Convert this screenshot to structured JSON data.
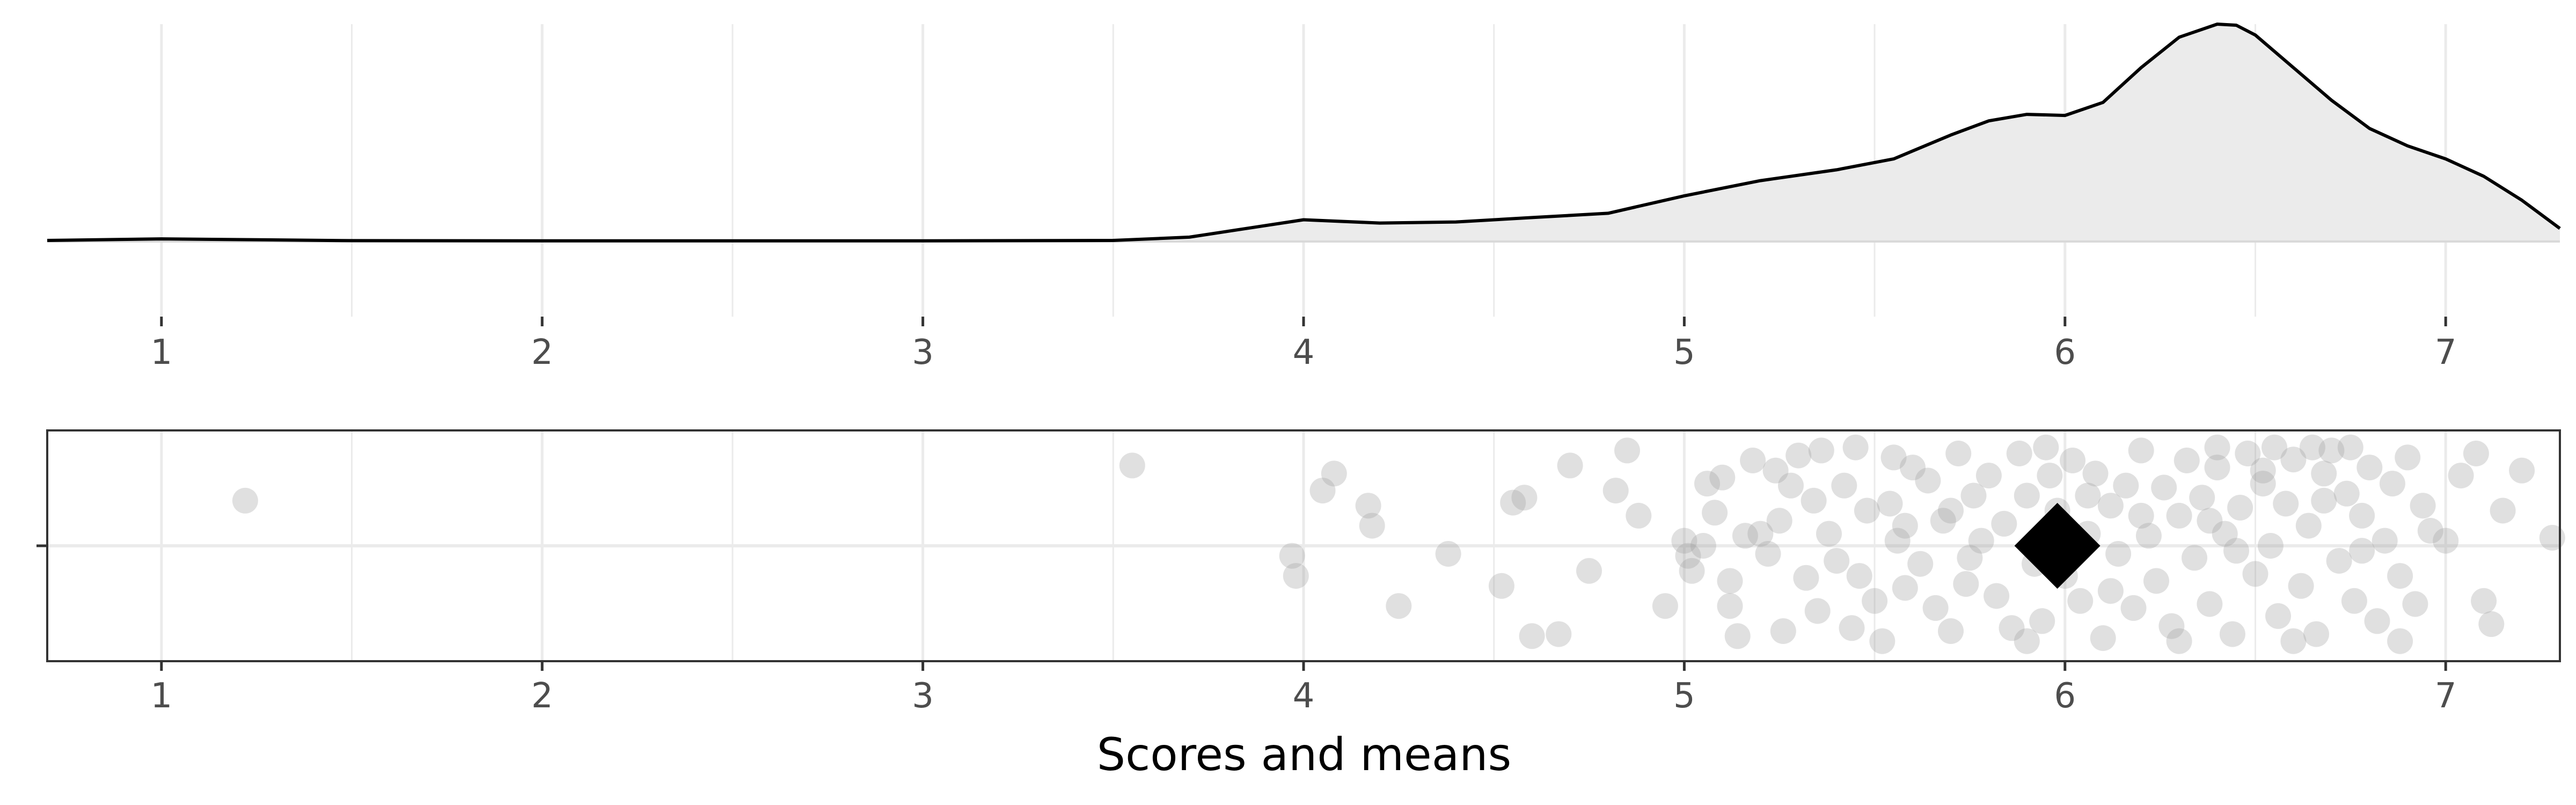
{
  "chart_data": [
    {
      "type": "area",
      "title": "",
      "xlabel": "",
      "ylabel": "",
      "xlim": [
        0.7,
        7.3
      ],
      "ylim": [
        0,
        1
      ],
      "grid": true,
      "legend": "none",
      "x_ticks": [
        1,
        2,
        3,
        4,
        5,
        6,
        7
      ],
      "x_tick_labels": [
        "1",
        "2",
        "3",
        "4",
        "5",
        "6",
        "7"
      ],
      "series": [
        {
          "x": [
            0.7,
            1.0,
            1.5,
            2.0,
            3.0,
            3.5,
            3.7,
            3.85,
            4.0,
            4.2,
            4.4,
            4.6,
            4.8,
            5.0,
            5.2,
            5.4,
            5.55,
            5.7,
            5.8,
            5.9,
            6.0,
            6.1,
            6.2,
            6.3,
            6.4,
            6.45,
            6.5,
            6.6,
            6.7,
            6.8,
            6.9,
            7.0,
            7.1,
            7.2,
            7.3
          ],
          "y": [
            0.005,
            0.012,
            0.004,
            0.003,
            0.003,
            0.005,
            0.02,
            0.06,
            0.1,
            0.085,
            0.09,
            0.11,
            0.13,
            0.21,
            0.28,
            0.33,
            0.38,
            0.49,
            0.555,
            0.585,
            0.58,
            0.64,
            0.8,
            0.94,
            1.0,
            0.995,
            0.95,
            0.8,
            0.65,
            0.52,
            0.44,
            0.38,
            0.3,
            0.19,
            0.06
          ]
        }
      ]
    },
    {
      "type": "scatter",
      "title": "",
      "xlabel": "Scores and means",
      "ylabel": "",
      "xlim": [
        0.7,
        7.3
      ],
      "grid": true,
      "legend": "none",
      "x_ticks": [
        1,
        2,
        3,
        4,
        5,
        6,
        7
      ],
      "x_tick_labels": [
        "1",
        "2",
        "3",
        "4",
        "5",
        "6",
        "7"
      ],
      "mean": 5.98,
      "points": [
        [
          1.22,
          0.45
        ],
        [
          3.55,
          0.8
        ],
        [
          3.97,
          -0.1
        ],
        [
          3.98,
          -0.3
        ],
        [
          4.05,
          0.55
        ],
        [
          4.08,
          0.72
        ],
        [
          4.17,
          0.4
        ],
        [
          4.18,
          0.2
        ],
        [
          4.25,
          -0.6
        ],
        [
          4.38,
          -0.08
        ],
        [
          4.52,
          -0.4
        ],
        [
          4.55,
          0.43
        ],
        [
          4.58,
          0.48
        ],
        [
          4.6,
          -0.9
        ],
        [
          4.67,
          -0.88
        ],
        [
          4.7,
          0.8
        ],
        [
          4.75,
          -0.25
        ],
        [
          4.82,
          0.55
        ],
        [
          4.85,
          0.95
        ],
        [
          4.88,
          0.3
        ],
        [
          4.95,
          -0.6
        ],
        [
          5.0,
          0.05
        ],
        [
          5.01,
          -0.1
        ],
        [
          5.02,
          -0.25
        ],
        [
          5.05,
          0.0
        ],
        [
          5.06,
          0.62
        ],
        [
          5.08,
          0.33
        ],
        [
          5.1,
          0.68
        ],
        [
          5.12,
          -0.6
        ],
        [
          5.14,
          -0.9
        ],
        [
          5.16,
          0.1
        ],
        [
          5.18,
          0.85
        ],
        [
          5.2,
          0.12
        ],
        [
          5.22,
          -0.08
        ],
        [
          5.24,
          0.75
        ],
        [
          5.26,
          -0.85
        ],
        [
          5.28,
          0.6
        ],
        [
          5.3,
          0.9
        ],
        [
          5.32,
          -0.32
        ],
        [
          5.34,
          0.45
        ],
        [
          5.36,
          0.95
        ],
        [
          5.38,
          0.12
        ],
        [
          5.4,
          -0.15
        ],
        [
          5.42,
          0.6
        ],
        [
          5.44,
          -0.82
        ],
        [
          5.46,
          -0.3
        ],
        [
          5.48,
          0.35
        ],
        [
          5.5,
          -0.55
        ],
        [
          5.52,
          -0.95
        ],
        [
          5.54,
          0.42
        ],
        [
          5.56,
          0.05
        ],
        [
          5.58,
          -0.42
        ],
        [
          5.6,
          0.78
        ],
        [
          5.62,
          -0.18
        ],
        [
          5.64,
          0.65
        ],
        [
          5.66,
          -0.62
        ],
        [
          5.68,
          0.25
        ],
        [
          5.7,
          -0.85
        ],
        [
          5.72,
          0.92
        ],
        [
          5.74,
          -0.38
        ],
        [
          5.76,
          0.5
        ],
        [
          5.78,
          0.05
        ],
        [
          5.8,
          0.7
        ],
        [
          5.82,
          -0.5
        ],
        [
          5.84,
          0.22
        ],
        [
          5.86,
          -0.82
        ],
        [
          5.88,
          0.92
        ],
        [
          5.9,
          0.5
        ],
        [
          5.92,
          -0.18
        ],
        [
          5.94,
          -0.75
        ],
        [
          5.96,
          0.7
        ],
        [
          5.98,
          0.35
        ],
        [
          6.0,
          -0.3
        ],
        [
          6.02,
          0.85
        ],
        [
          6.04,
          -0.55
        ],
        [
          6.06,
          0.12
        ],
        [
          6.08,
          0.72
        ],
        [
          6.1,
          -0.92
        ],
        [
          6.12,
          0.4
        ],
        [
          6.14,
          -0.08
        ],
        [
          6.16,
          0.6
        ],
        [
          6.18,
          -0.62
        ],
        [
          6.2,
          0.95
        ],
        [
          6.22,
          0.1
        ],
        [
          6.24,
          -0.35
        ],
        [
          6.26,
          0.58
        ],
        [
          6.28,
          -0.8
        ],
        [
          6.3,
          0.3
        ],
        [
          6.32,
          0.85
        ],
        [
          6.34,
          -0.12
        ],
        [
          6.36,
          0.48
        ],
        [
          6.38,
          -0.58
        ],
        [
          6.4,
          0.78
        ],
        [
          6.42,
          0.12
        ],
        [
          6.44,
          -0.88
        ],
        [
          6.46,
          0.38
        ],
        [
          6.48,
          0.92
        ],
        [
          6.5,
          -0.28
        ],
        [
          6.52,
          0.62
        ],
        [
          6.54,
          0.0
        ],
        [
          6.56,
          -0.7
        ],
        [
          6.58,
          0.42
        ],
        [
          6.6,
          0.86
        ],
        [
          6.62,
          -0.4
        ],
        [
          6.64,
          0.2
        ],
        [
          6.66,
          -0.88
        ],
        [
          6.68,
          0.72
        ],
        [
          6.7,
          0.95
        ],
        [
          6.72,
          -0.15
        ],
        [
          6.74,
          0.52
        ],
        [
          6.76,
          -0.55
        ],
        [
          6.78,
          0.3
        ],
        [
          6.8,
          0.78
        ],
        [
          6.82,
          -0.75
        ],
        [
          6.84,
          0.05
        ],
        [
          6.86,
          0.62
        ],
        [
          6.88,
          -0.3
        ],
        [
          6.9,
          0.88
        ],
        [
          6.92,
          -0.58
        ],
        [
          6.94,
          0.4
        ],
        [
          6.96,
          0.15
        ],
        [
          7.0,
          0.05
        ],
        [
          7.04,
          0.7
        ],
        [
          7.08,
          0.92
        ],
        [
          7.1,
          -0.55
        ],
        [
          7.12,
          -0.78
        ],
        [
          7.15,
          0.35
        ],
        [
          7.2,
          0.75
        ],
        [
          7.28,
          0.08
        ],
        [
          5.45,
          0.98
        ],
        [
          5.95,
          0.98
        ],
        [
          6.4,
          0.98
        ],
        [
          6.55,
          0.98
        ],
        [
          6.65,
          0.98
        ],
        [
          6.75,
          0.98
        ],
        [
          5.9,
          -0.95
        ],
        [
          6.3,
          -0.95
        ],
        [
          6.6,
          -0.95
        ],
        [
          6.88,
          -0.95
        ],
        [
          5.7,
          0.35
        ],
        [
          5.75,
          -0.12
        ],
        [
          6.12,
          -0.45
        ],
        [
          6.45,
          -0.05
        ],
        [
          6.52,
          0.75
        ],
        [
          6.38,
          0.25
        ],
        [
          6.2,
          0.3
        ],
        [
          6.06,
          0.5
        ],
        [
          6.68,
          0.45
        ],
        [
          6.78,
          -0.05
        ],
        [
          5.25,
          0.25
        ],
        [
          5.12,
          -0.35
        ],
        [
          5.55,
          0.88
        ],
        [
          5.35,
          -0.65
        ],
        [
          5.58,
          0.2
        ]
      ]
    }
  ],
  "colors": {
    "density_fill": "#ebebeb",
    "density_line": "#000000",
    "point": "#9e9e9e",
    "mean_marker": "#000000",
    "grid": "#ebebeb",
    "panel_border": "#333333"
  }
}
